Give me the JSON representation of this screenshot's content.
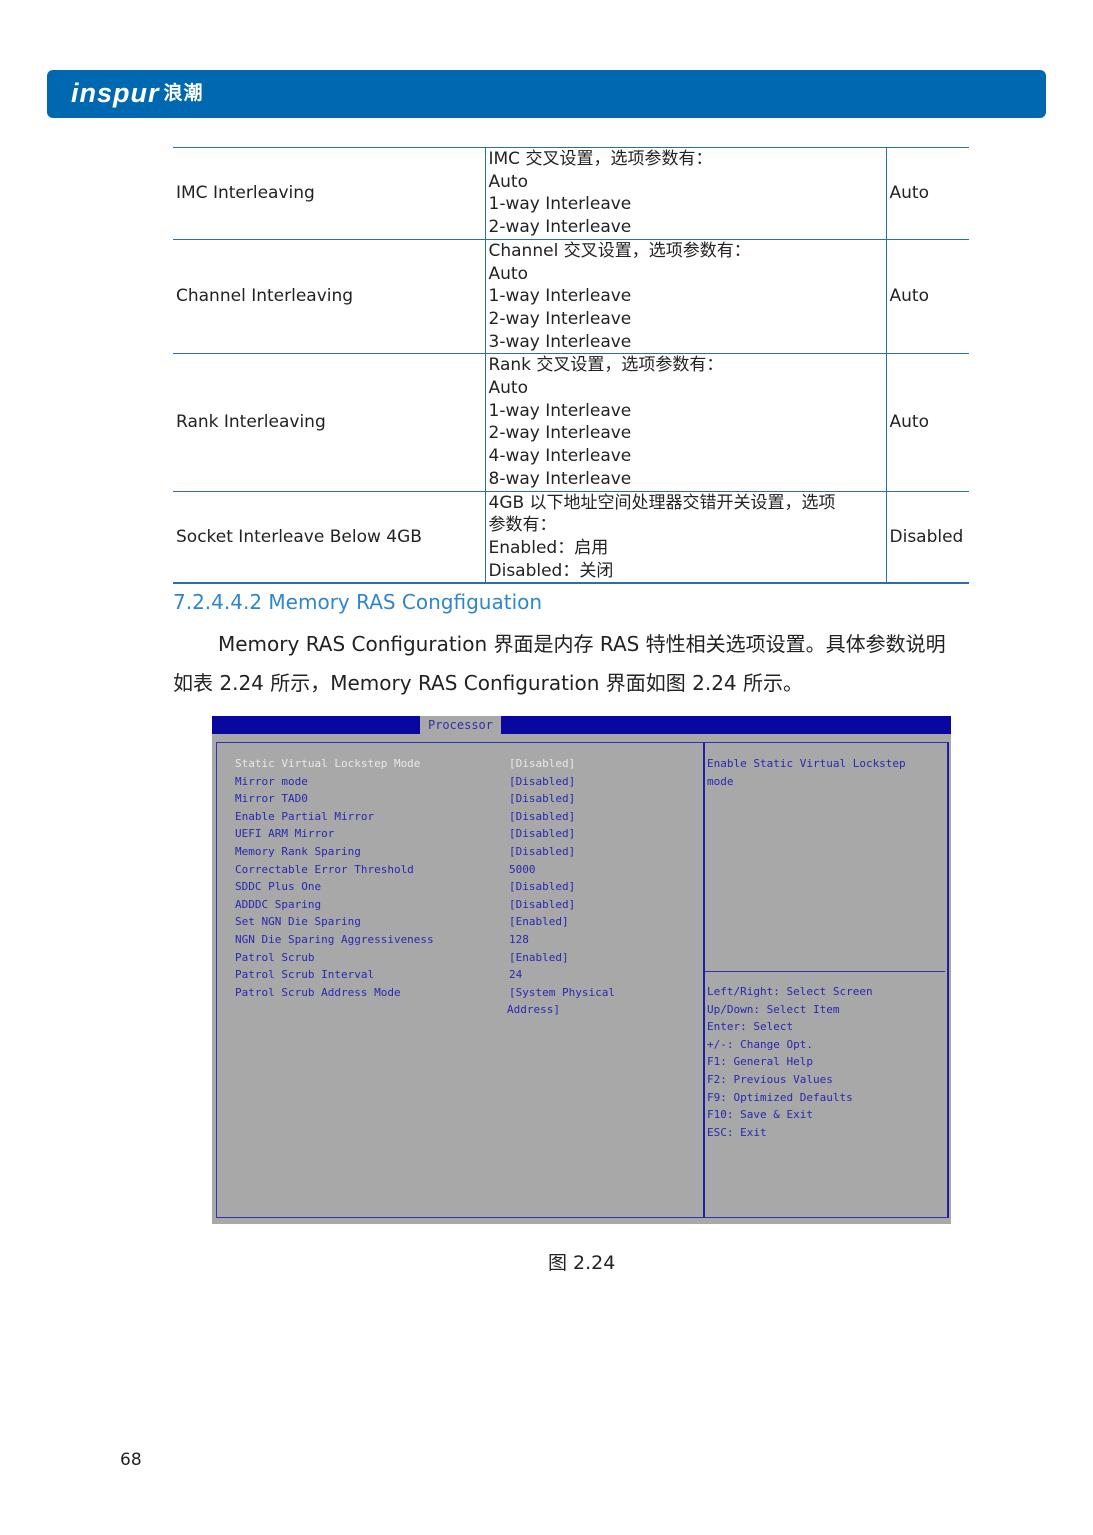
{
  "header": {
    "logo_text": "inspur",
    "logo_cn": "浪潮",
    "color": "#0068b0"
  },
  "table": {
    "rows": [
      {
        "name": "IMC Interleaving",
        "desc": [
          "IMC 交叉设置，选项参数有：",
          "Auto",
          "1-way Interleave",
          "2-way Interleave"
        ],
        "default": "Auto"
      },
      {
        "name": "Channel Interleaving",
        "desc": [
          "Channel 交叉设置，选项参数有：",
          "Auto",
          "1-way Interleave",
          "2-way Interleave",
          "3-way Interleave"
        ],
        "default": "Auto"
      },
      {
        "name": "Rank Interleaving",
        "desc": [
          "Rank 交叉设置，选项参数有：",
          "Auto",
          "1-way Interleave",
          "2-way Interleave",
          "4-way Interleave",
          "8-way Interleave"
        ],
        "default": "Auto"
      },
      {
        "name": "Socket Interleave Below 4GB",
        "desc": [
          "4GB 以下地址空间处理器交错开关设置，选项",
          "参数有：",
          "Enabled：启用",
          "Disabled：关闭"
        ],
        "default": "Disabled"
      }
    ]
  },
  "section": {
    "heading": "7.2.4.4.2  Memory RAS Congfiguation",
    "para_line1": "Memory RAS Configuration 界面是内存 RAS 特性相关选项设置。具体参数说明",
    "para_line2": "如表 2.24 所示，Memory RAS Configuration 界面如图 2.24 所示。"
  },
  "bios": {
    "tab": "Processor",
    "items": [
      {
        "label": "Static Virtual Lockstep Mode",
        "value": "[Disabled]"
      },
      {
        "label": "Mirror mode",
        "value": "[Disabled]"
      },
      {
        "label": "Mirror TAD0",
        "value": "[Disabled]"
      },
      {
        "label": "Enable Partial Mirror",
        "value": "[Disabled]"
      },
      {
        "label": "UEFI ARM Mirror",
        "value": "[Disabled]"
      },
      {
        "label": "Memory Rank Sparing",
        "value": "[Disabled]"
      },
      {
        "label": "Correctable Error Threshold",
        "value": "5000"
      },
      {
        "label": "SDDC Plus One",
        "value": "[Disabled]"
      },
      {
        "label": "ADDDC Sparing",
        "value": "[Disabled]"
      },
      {
        "label": "Set NGN Die Sparing",
        "value": "[Enabled]"
      },
      {
        "label": "NGN Die Sparing Aggressiveness",
        "value": "128"
      },
      {
        "label": "Patrol Scrub",
        "value": "[Enabled]"
      },
      {
        "label": "Patrol Scrub Interval",
        "value": "24"
      },
      {
        "label": "Patrol Scrub Address Mode",
        "value": "[System Physical",
        "value2": "Address]"
      }
    ],
    "help": [
      "Enable Static Virtual Lockstep",
      "mode"
    ],
    "keys": [
      "Left/Right: Select Screen",
      "Up/Down: Select Item",
      "Enter: Select",
      "+/-: Change Opt.",
      "F1: General Help",
      "F2: Previous Values",
      "F9: Optimized Defaults",
      "F10: Save & Exit",
      "ESC: Exit"
    ]
  },
  "caption": "图 2.24",
  "page_number": "68"
}
